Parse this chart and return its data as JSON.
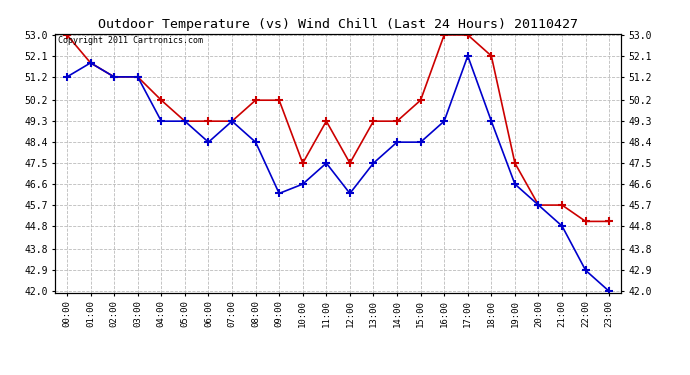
{
  "title": "Outdoor Temperature (vs) Wind Chill (Last 24 Hours) 20110427",
  "copyright_text": "Copyright 2011 Cartronics.com",
  "x_labels": [
    "00:00",
    "01:00",
    "02:00",
    "03:00",
    "04:00",
    "05:00",
    "06:00",
    "07:00",
    "08:00",
    "09:00",
    "10:00",
    "11:00",
    "12:00",
    "13:00",
    "14:00",
    "15:00",
    "16:00",
    "17:00",
    "18:00",
    "19:00",
    "20:00",
    "21:00",
    "22:00",
    "23:00"
  ],
  "temp": [
    53.0,
    51.8,
    51.2,
    51.2,
    50.2,
    49.3,
    49.3,
    49.3,
    50.2,
    50.2,
    47.5,
    49.3,
    47.5,
    49.3,
    49.3,
    50.2,
    53.0,
    53.0,
    52.1,
    47.5,
    45.7,
    45.7,
    45.0,
    45.0
  ],
  "windchill": [
    51.2,
    51.8,
    51.2,
    51.2,
    49.3,
    49.3,
    48.4,
    49.3,
    48.4,
    46.2,
    46.6,
    47.5,
    46.2,
    47.5,
    48.4,
    48.4,
    49.3,
    52.1,
    49.3,
    46.6,
    45.7,
    44.8,
    42.9,
    42.0
  ],
  "temp_color": "#cc0000",
  "windchill_color": "#0000cc",
  "bg_color": "#ffffff",
  "grid_color": "#bbbbbb",
  "ymin": 42.0,
  "ymax": 53.0,
  "yticks": [
    42.0,
    42.9,
    43.8,
    44.8,
    45.7,
    46.6,
    47.5,
    48.4,
    49.3,
    50.2,
    51.2,
    52.1,
    53.0
  ],
  "marker": "+",
  "markersize": 6,
  "markeredgewidth": 1.5,
  "linewidth": 1.2
}
